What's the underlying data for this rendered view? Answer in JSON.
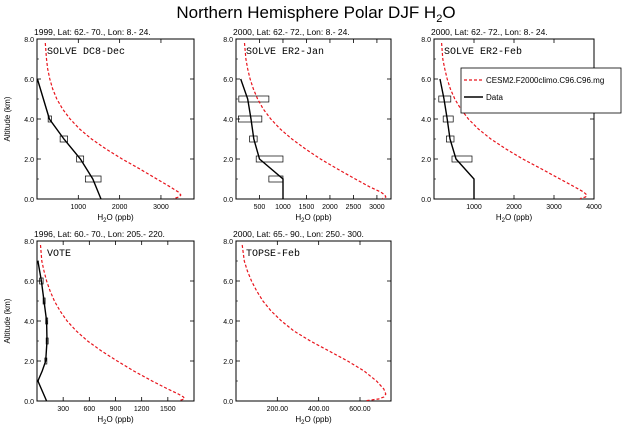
{
  "figure": {
    "title": "Northern Hemisphere Polar DJF H",
    "title_sub": "2",
    "title_tail": "O",
    "model_color": "#e8141c",
    "data_color": "#000000"
  },
  "chart_data": [
    {
      "type": "line",
      "header": "1999, Lat: 62.- 70., Lon: 8.- 24.",
      "label": "SOLVE DC8-Dec",
      "xlabel": "H2O (ppb)",
      "ylabel": "Altitude (km)",
      "xlim": [
        0,
        3800
      ],
      "ylim": [
        0,
        8
      ],
      "xticks": [
        1000,
        2000,
        3000
      ],
      "xtick_labels": [
        "1000",
        "2000",
        "3000"
      ],
      "yticks": [
        0,
        2,
        4,
        6,
        8
      ],
      "ytick_labels": [
        "0.0",
        "2.0",
        "4.0",
        "6.0",
        "8.0"
      ],
      "model": {
        "name": "CESM2.F2000climo.C96.C96.mg",
        "x": [
          200,
          230,
          260,
          310,
          380,
          480,
          620,
          800,
          1030,
          1320,
          1670,
          2060,
          2490,
          2900,
          3230,
          3420,
          3480,
          3440,
          3300
        ],
        "y": [
          7.8,
          7.0,
          6.5,
          6.0,
          5.5,
          5.0,
          4.5,
          4.0,
          3.5,
          3.0,
          2.5,
          2.0,
          1.5,
          1.0,
          0.6,
          0.35,
          0.2,
          0.1,
          0.02
        ]
      },
      "obs": {
        "name": "Data",
        "x": [
          10,
          300,
          650,
          1050,
          1350,
          1550
        ],
        "y": [
          6.0,
          4.0,
          3.0,
          2.0,
          1.0,
          0.0
        ]
      },
      "boxes": [
        {
          "y": 4.0,
          "x0": 270,
          "x1": 350
        },
        {
          "y": 3.0,
          "x0": 560,
          "x1": 740
        },
        {
          "y": 2.0,
          "x0": 960,
          "x1": 1130
        },
        {
          "y": 1.0,
          "x0": 1170,
          "x1": 1550
        }
      ]
    },
    {
      "type": "line",
      "header": "2000, Lat: 62.- 72., Lon: 8.- 24.",
      "label": "SOLVE ER2-Jan",
      "xlabel": "H2O (ppb)",
      "ylabel": "",
      "xlim": [
        0,
        3300
      ],
      "ylim": [
        0,
        8
      ],
      "xticks": [
        500,
        1000,
        1500,
        2000,
        2500,
        3000
      ],
      "xtick_labels": [
        "500",
        "1000",
        "1500",
        "2000",
        "2500",
        "3000"
      ],
      "yticks": [
        0,
        2,
        4,
        6,
        8
      ],
      "ytick_labels": [
        "0.0",
        "2.0",
        "4.0",
        "6.0",
        "8.0"
      ],
      "model": {
        "name": "CESM2.F2000climo.C96.C96.mg",
        "x": [
          180,
          210,
          250,
          300,
          370,
          460,
          580,
          740,
          940,
          1190,
          1480,
          1800,
          2160,
          2540,
          2850,
          3080,
          3170,
          3190,
          3120
        ],
        "y": [
          7.8,
          7.0,
          6.5,
          6.0,
          5.5,
          5.0,
          4.5,
          4.0,
          3.5,
          3.0,
          2.5,
          2.0,
          1.5,
          1.0,
          0.6,
          0.35,
          0.2,
          0.1,
          0.02
        ]
      },
      "obs": {
        "name": "Data",
        "x": [
          100,
          250,
          320,
          380,
          500,
          1000,
          1000
        ],
        "y": [
          6.0,
          5.0,
          4.0,
          3.0,
          2.0,
          1.0,
          0.0
        ]
      },
      "boxes": [
        {
          "y": 5.0,
          "x0": 60,
          "x1": 700
        },
        {
          "y": 4.0,
          "x0": 50,
          "x1": 550
        },
        {
          "y": 3.0,
          "x0": 290,
          "x1": 450
        },
        {
          "y": 2.0,
          "x0": 430,
          "x1": 1000
        },
        {
          "y": 1.0,
          "x0": 700,
          "x1": 1000
        }
      ]
    },
    {
      "type": "line",
      "header": "2000, Lat: 62.- 72., Lon: 8.- 24.",
      "label": "SOLVE ER2-Feb",
      "xlabel": "H2O (ppb)",
      "ylabel": "",
      "xlim": [
        0,
        4000
      ],
      "ylim": [
        0,
        8
      ],
      "xticks": [
        1000,
        2000,
        3000,
        4000
      ],
      "xtick_labels": [
        "1000",
        "2000",
        "3000",
        "4000"
      ],
      "yticks": [
        0,
        2,
        4,
        6,
        8
      ],
      "ytick_labels": [
        "0.0",
        "2.0",
        "4.0",
        "6.0",
        "8.0"
      ],
      "model": {
        "name": "CESM2.F2000climo.C96.C96.mg",
        "x": [
          190,
          220,
          270,
          330,
          410,
          520,
          670,
          860,
          1110,
          1420,
          1800,
          2220,
          2690,
          3150,
          3520,
          3740,
          3820,
          3790,
          3650
        ],
        "y": [
          7.8,
          7.0,
          6.5,
          6.0,
          5.5,
          5.0,
          4.5,
          4.0,
          3.5,
          3.0,
          2.5,
          2.0,
          1.5,
          1.0,
          0.6,
          0.35,
          0.2,
          0.1,
          0.02
        ]
      },
      "obs": {
        "name": "Data",
        "x": [
          150,
          250,
          330,
          400,
          550,
          1000,
          1000
        ],
        "y": [
          6.0,
          5.0,
          4.0,
          3.0,
          2.0,
          1.0,
          0.0
        ]
      },
      "boxes": [
        {
          "y": 5.0,
          "x0": 120,
          "x1": 420
        },
        {
          "y": 4.0,
          "x0": 230,
          "x1": 480
        },
        {
          "y": 3.0,
          "x0": 310,
          "x1": 500
        },
        {
          "y": 2.0,
          "x0": 450,
          "x1": 950
        }
      ],
      "legend": {
        "entries": [
          "CESM2.F2000climo.C96.C96.mg",
          "Data"
        ],
        "placement": "upper-right"
      }
    },
    {
      "type": "line",
      "header": "1996, Lat: 60.- 70., Lon: 205.- 220.",
      "label": "VOTE",
      "xlabel": "H2O (ppb)",
      "ylabel": "Altitude (km)",
      "xlim": [
        0,
        1800
      ],
      "ylim": [
        0,
        8
      ],
      "xticks": [
        300,
        600,
        900,
        1200,
        1500
      ],
      "xtick_labels": [
        "300",
        "600",
        "900",
        "1200",
        "1500"
      ],
      "yticks": [
        0,
        2,
        4,
        6,
        8
      ],
      "ytick_labels": [
        "0.0",
        "2.0",
        "4.0",
        "6.0",
        "8.0"
      ],
      "model": {
        "name": "CESM2.F2000climo.C96.C96.mg",
        "x": [
          40,
          55,
          80,
          110,
          150,
          200,
          265,
          345,
          450,
          580,
          740,
          920,
          1110,
          1320,
          1500,
          1620,
          1680,
          1690,
          1630
        ],
        "y": [
          7.8,
          7.0,
          6.5,
          6.0,
          5.5,
          5.0,
          4.5,
          4.0,
          3.5,
          3.0,
          2.5,
          2.0,
          1.5,
          1.0,
          0.6,
          0.35,
          0.2,
          0.1,
          0.02
        ]
      },
      "obs": {
        "name": "Data",
        "x": [
          10,
          50,
          80,
          110,
          115,
          100,
          60,
          10,
          110
        ],
        "y": [
          7.0,
          6.0,
          5.0,
          4.0,
          3.0,
          2.0,
          1.5,
          1.0,
          0.0
        ]
      },
      "boxes": [
        {
          "y": 6.0,
          "x0": 30,
          "x1": 70
        },
        {
          "y": 5.0,
          "x0": 70,
          "x1": 90
        },
        {
          "y": 4.0,
          "x0": 100,
          "x1": 120
        },
        {
          "y": 3.0,
          "x0": 105,
          "x1": 125
        },
        {
          "y": 2.0,
          "x0": 90,
          "x1": 110
        }
      ]
    },
    {
      "type": "line",
      "header": "2000, Lat: 65.- 90., Lon: 250.- 300.",
      "label": "TOPSE-Feb",
      "xlabel": "H2O (ppb)",
      "ylabel": "",
      "xlim": [
        0,
        750
      ],
      "ylim": [
        0,
        8
      ],
      "xticks": [
        200,
        400,
        600
      ],
      "xtick_labels": [
        "200.00",
        "400.00",
        "600.00"
      ],
      "yticks": [
        0,
        2,
        4,
        6,
        8
      ],
      "ytick_labels": [
        "0.0",
        "2.0",
        "4.0",
        "6.0",
        "8.0"
      ],
      "model": {
        "name": "CESM2.F2000climo.C96.C96.mg",
        "x": [
          30,
          40,
          55,
          75,
          100,
          130,
          170,
          220,
          280,
          360,
          450,
          540,
          620,
          680,
          715,
          725,
          715,
          690,
          630
        ],
        "y": [
          7.8,
          7.0,
          6.5,
          6.0,
          5.5,
          5.0,
          4.5,
          4.0,
          3.5,
          3.0,
          2.5,
          2.0,
          1.5,
          1.0,
          0.6,
          0.35,
          0.2,
          0.1,
          0.02
        ]
      },
      "obs": {
        "name": "Data",
        "x": [],
        "y": []
      },
      "boxes": []
    }
  ]
}
